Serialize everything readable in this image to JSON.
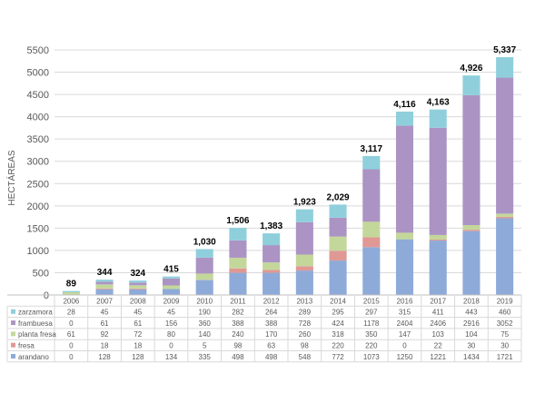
{
  "chart_data": {
    "type": "bar",
    "stacked": true,
    "ylabel": "HECTÁREAS",
    "ylim": [
      0,
      5500
    ],
    "yticks": [
      "0",
      "500",
      "1000",
      "1500",
      "2000",
      "2500",
      "3000",
      "3500",
      "4000",
      "4500",
      "5000",
      "5500"
    ],
    "grid": true,
    "legend": "table",
    "categories": [
      "2006",
      "2007",
      "2008",
      "2009",
      "2010",
      "2011",
      "2012",
      "2013",
      "2014",
      "2015",
      "2016",
      "2017",
      "2018",
      "2019"
    ],
    "totals": [
      "89",
      "344",
      "324",
      "415",
      "1,030",
      "1,506",
      "1,383",
      "1,923",
      "2,029",
      "3,117",
      "4,116",
      "4,163",
      "4,926",
      "5,337"
    ],
    "series": [
      {
        "name": "zarzamora",
        "color": "#8fcfdc",
        "values": [
          28,
          45,
          45,
          45,
          190,
          282,
          264,
          289,
          295,
          297,
          315,
          411,
          443,
          460
        ]
      },
      {
        "name": "frambuesa",
        "color": "#ab94c4",
        "values": [
          0,
          61,
          61,
          156,
          360,
          388,
          388,
          728,
          424,
          1178,
          2404,
          2406,
          2916,
          3052
        ]
      },
      {
        "name": "planta fresa",
        "color": "#c4d79b",
        "values": [
          61,
          92,
          72,
          80,
          140,
          240,
          170,
          260,
          318,
          350,
          147,
          103,
          104,
          75
        ]
      },
      {
        "name": "fresa",
        "color": "#e09894",
        "values": [
          0,
          18,
          18,
          0,
          5,
          98,
          63,
          98,
          220,
          220,
          0,
          22,
          30,
          30
        ]
      },
      {
        "name": "arandano",
        "color": "#8eaad8",
        "values": [
          0,
          128,
          128,
          134,
          335,
          498,
          498,
          548,
          772,
          1073,
          1250,
          1221,
          1434,
          1721
        ]
      }
    ]
  }
}
